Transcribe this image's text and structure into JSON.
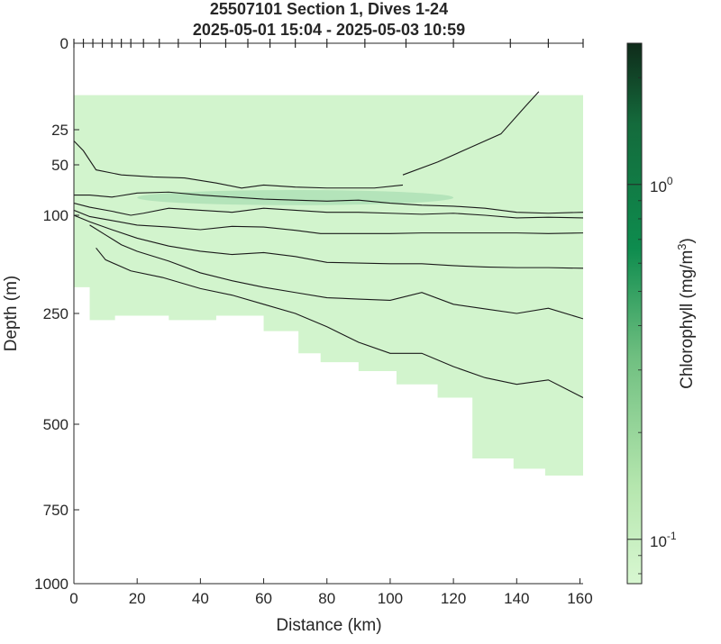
{
  "chart_data": {
    "type": "heatmap",
    "title": [
      "25507101 Section 1, Dives 1-24",
      "2025-05-01 15:04 - 2025-05-03 10:59"
    ],
    "xlabel": "Distance (km)",
    "ylabel": "Depth (m)",
    "xlim": [
      0,
      161
    ],
    "x_ticks": [
      0,
      20,
      40,
      60,
      80,
      100,
      120,
      140,
      160
    ],
    "y_ticks": [
      0,
      25,
      50,
      100,
      250,
      500,
      750,
      1000
    ],
    "y_scale": "nonlinear (stretched near surface)",
    "dive_distances_km": [
      0,
      3,
      6,
      9,
      12,
      15,
      18,
      22,
      27,
      33,
      40,
      48,
      55,
      62,
      70,
      80,
      92,
      105,
      120,
      138,
      150,
      161
    ],
    "colorbar": {
      "label": "Chlorophyll (mg/m³)",
      "label_text": "Chlorophyll (mg/m",
      "label_sup": "3",
      "label_close": ")",
      "scale": "log",
      "range": [
        0.075,
        2.5
      ],
      "ticks": [
        {
          "base": "10",
          "exp": "0",
          "value": 1
        },
        {
          "base": "10",
          "exp": "-1",
          "value": 0.1
        }
      ],
      "colors": {
        "low": "#d8f7d1",
        "mid": "#0e8c4e",
        "high": "#0f2b1a"
      }
    },
    "field": {
      "background_value_mg_m3": 0.08,
      "chlorophyll_max_layer": {
        "depth_m": [
          75,
          90
        ],
        "x_km": [
          20,
          120
        ],
        "value_mg_m3": 0.12
      },
      "data_bottom": [
        {
          "x": 5,
          "depth": 210
        },
        {
          "x": 13,
          "depth": 265
        },
        {
          "x": 30,
          "depth": 255
        },
        {
          "x": 45,
          "depth": 265
        },
        {
          "x": 60,
          "depth": 255
        },
        {
          "x": 71,
          "depth": 290
        },
        {
          "x": 78,
          "depth": 340
        },
        {
          "x": 90,
          "depth": 360
        },
        {
          "x": 102,
          "depth": 380
        },
        {
          "x": 115,
          "depth": 410
        },
        {
          "x": 126,
          "depth": 440
        },
        {
          "x": 139,
          "depth": 600
        },
        {
          "x": 149,
          "depth": 630
        },
        {
          "x": 161,
          "depth": 650
        }
      ]
    },
    "contours": [
      [
        [
          104,
          60
        ],
        [
          115,
          48
        ],
        [
          125,
          38
        ],
        [
          135,
          28
        ],
        [
          143,
          18
        ],
        [
          147,
          14
        ]
      ],
      [
        [
          0,
          33
        ],
        [
          3,
          40
        ],
        [
          7,
          55
        ],
        [
          15,
          60
        ],
        [
          25,
          62
        ],
        [
          35,
          63
        ],
        [
          45,
          68
        ],
        [
          53,
          73
        ],
        [
          60,
          70
        ],
        [
          70,
          72
        ],
        [
          80,
          73
        ],
        [
          95,
          73
        ],
        [
          104,
          70
        ]
      ],
      [
        [
          0,
          80
        ],
        [
          5,
          80
        ],
        [
          12,
          82
        ],
        [
          20,
          78
        ],
        [
          30,
          77
        ],
        [
          40,
          80
        ],
        [
          50,
          82
        ],
        [
          60,
          84
        ],
        [
          70,
          85
        ],
        [
          80,
          86
        ],
        [
          90,
          85
        ],
        [
          100,
          88
        ],
        [
          110,
          90
        ],
        [
          120,
          91
        ],
        [
          130,
          93
        ],
        [
          140,
          97
        ],
        [
          150,
          98
        ],
        [
          161,
          97
        ]
      ],
      [
        [
          0,
          88
        ],
        [
          5,
          92
        ],
        [
          12,
          96
        ],
        [
          18,
          100
        ],
        [
          22,
          98
        ],
        [
          30,
          93
        ],
        [
          40,
          95
        ],
        [
          50,
          97
        ],
        [
          60,
          93
        ],
        [
          70,
          95
        ],
        [
          80,
          97
        ],
        [
          90,
          97
        ],
        [
          100,
          98
        ],
        [
          110,
          99
        ],
        [
          120,
          98
        ],
        [
          130,
          100
        ],
        [
          140,
          104
        ],
        [
          150,
          103
        ],
        [
          161,
          104
        ]
      ],
      [
        [
          0,
          95
        ],
        [
          5,
          102
        ],
        [
          12,
          108
        ],
        [
          20,
          115
        ],
        [
          30,
          118
        ],
        [
          40,
          122
        ],
        [
          50,
          117
        ],
        [
          60,
          118
        ],
        [
          70,
          123
        ],
        [
          78,
          128
        ],
        [
          90,
          128
        ],
        [
          100,
          128
        ],
        [
          110,
          127
        ],
        [
          120,
          127
        ],
        [
          130,
          127
        ],
        [
          140,
          127
        ],
        [
          150,
          128
        ],
        [
          161,
          127
        ]
      ],
      [
        [
          0,
          100
        ],
        [
          5,
          110
        ],
        [
          12,
          122
        ],
        [
          20,
          135
        ],
        [
          30,
          147
        ],
        [
          40,
          155
        ],
        [
          50,
          160
        ],
        [
          60,
          157
        ],
        [
          70,
          163
        ],
        [
          80,
          172
        ],
        [
          90,
          173
        ],
        [
          100,
          174
        ],
        [
          110,
          174
        ],
        [
          120,
          177
        ],
        [
          130,
          179
        ],
        [
          140,
          180
        ],
        [
          150,
          180
        ],
        [
          161,
          181
        ]
      ],
      [
        [
          5,
          115
        ],
        [
          10,
          130
        ],
        [
          15,
          145
        ],
        [
          20,
          155
        ],
        [
          30,
          170
        ],
        [
          40,
          188
        ],
        [
          50,
          200
        ],
        [
          60,
          210
        ],
        [
          70,
          218
        ],
        [
          80,
          226
        ],
        [
          90,
          228
        ],
        [
          100,
          230
        ],
        [
          110,
          218
        ],
        [
          120,
          236
        ],
        [
          130,
          243
        ],
        [
          140,
          250
        ],
        [
          150,
          242
        ],
        [
          161,
          262
        ]
      ],
      [
        [
          7,
          150
        ],
        [
          10,
          168
        ],
        [
          18,
          185
        ],
        [
          28,
          195
        ],
        [
          40,
          212
        ],
        [
          50,
          222
        ],
        [
          60,
          236
        ],
        [
          70,
          250
        ],
        [
          80,
          280
        ],
        [
          90,
          315
        ],
        [
          100,
          340
        ],
        [
          110,
          340
        ],
        [
          120,
          370
        ],
        [
          130,
          395
        ],
        [
          140,
          410
        ],
        [
          150,
          400
        ],
        [
          161,
          440
        ]
      ]
    ]
  }
}
